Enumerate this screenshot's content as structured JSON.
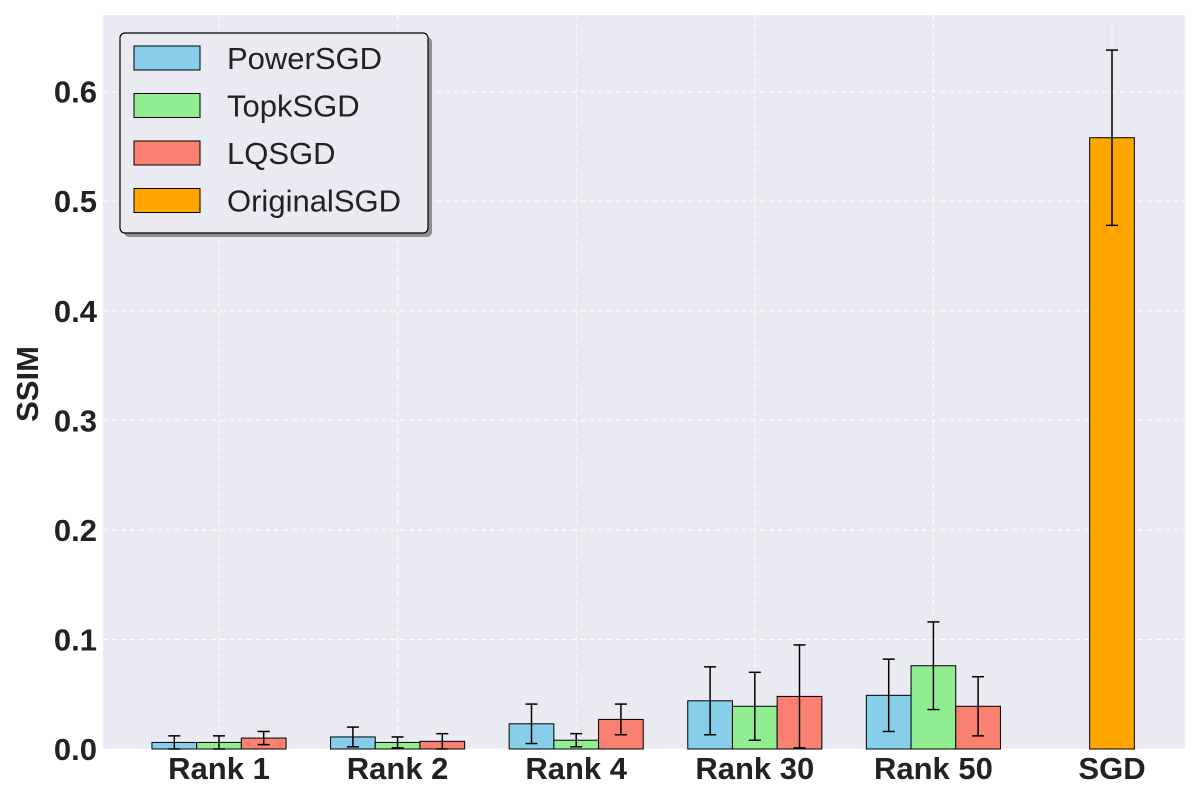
{
  "chart_data": {
    "type": "bar",
    "title": "",
    "xlabel": "",
    "ylabel": "SSIM",
    "ylim": [
      0,
      0.67
    ],
    "yticks": [
      "0.0",
      "0.1",
      "0.2",
      "0.3",
      "0.4",
      "0.5",
      "0.6"
    ],
    "grid": true,
    "legend_position": "top-left",
    "categories": [
      "Rank 1",
      "Rank 2",
      "Rank 4",
      "Rank 30",
      "Rank 50",
      "SGD"
    ],
    "series": [
      {
        "name": "PowerSGD",
        "color": "#87ceeb",
        "values": [
          0.006,
          0.011,
          0.023,
          0.044,
          0.049,
          null
        ],
        "errors": [
          0.006,
          0.009,
          0.018,
          0.031,
          0.033,
          null
        ]
      },
      {
        "name": "TopkSGD",
        "color": "#90ee90",
        "values": [
          0.006,
          0.006,
          0.008,
          0.039,
          0.076,
          null
        ],
        "errors": [
          0.006,
          0.005,
          0.006,
          0.031,
          0.04,
          null
        ]
      },
      {
        "name": "LQSGD",
        "color": "#fa8072",
        "values": [
          0.01,
          0.007,
          0.027,
          0.048,
          0.039,
          null
        ],
        "errors": [
          0.006,
          0.007,
          0.014,
          0.047,
          0.027,
          null
        ]
      },
      {
        "name": "OriginalSGD",
        "color": "#ffa500",
        "values": [
          null,
          null,
          null,
          null,
          null,
          0.558
        ],
        "errors": [
          null,
          null,
          null,
          null,
          null,
          0.08
        ]
      }
    ],
    "colors": {
      "plot_background": "#eaeaf2",
      "grid": "#ffffff",
      "bar_edge": "#000000"
    }
  }
}
